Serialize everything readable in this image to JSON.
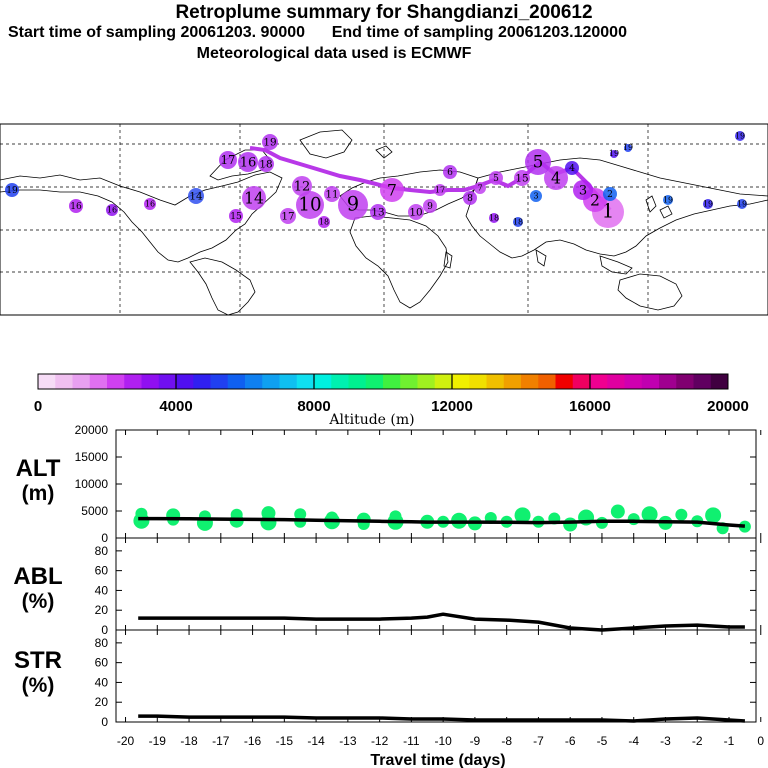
{
  "titles": {
    "line1": "Retroplume summary for Shangdianzi_200612",
    "line2": "Start time of sampling 20061203. 90000      End time of sampling 20061203.120000",
    "line3": "Meteorological data used is ECMWF"
  },
  "colorbar": {
    "label": "Altitude (m)",
    "ticks": [
      "0",
      "4000",
      "8000",
      "12000",
      "16000",
      "20000"
    ],
    "range": [
      0,
      20000
    ],
    "colors": [
      "#f6dcf6",
      "#f0c0f0",
      "#e8a0f0",
      "#e070f0",
      "#d040f0",
      "#b020f0",
      "#9010f0",
      "#7010f0",
      "#5010f0",
      "#3020f0",
      "#2040f0",
      "#1060f0",
      "#1080f0",
      "#10a0f0",
      "#10c0f0",
      "#10e0f0",
      "#00f0e0",
      "#00f0b0",
      "#00f090",
      "#10f070",
      "#40f040",
      "#70f030",
      "#a0f020",
      "#d0f010",
      "#f0f000",
      "#f0e000",
      "#f0c000",
      "#f0a000",
      "#f08000",
      "#f06000",
      "#f00000",
      "#f00060",
      "#f00090",
      "#e000a0",
      "#d000b0",
      "#c000b0",
      "#a00090",
      "#800070",
      "#600060",
      "#400040"
    ]
  },
  "map": {
    "plume_color": "#bb30e0",
    "labels": [
      "1",
      "2",
      "3",
      "4",
      "5",
      "6",
      "7",
      "8",
      "9",
      "10",
      "11",
      "12",
      "13",
      "14",
      "15",
      "16",
      "17",
      "18",
      "19"
    ]
  },
  "panels": {
    "alt": {
      "label_top": "ALT",
      "label_bottom": "(m)",
      "ticks": [
        "0",
        "5000",
        "10000",
        "15000",
        "20000"
      ]
    },
    "abl": {
      "label_top": "ABL",
      "label_bottom": "(%)",
      "ticks": [
        "0",
        "20",
        "40",
        "60",
        "80"
      ]
    },
    "str": {
      "label_top": "STR",
      "label_bottom": "(%)",
      "ticks": [
        "0",
        "20",
        "40",
        "60",
        "80"
      ]
    }
  },
  "xaxis": {
    "label": "Travel time (days)",
    "ticks": [
      "-20",
      "-19",
      "-18",
      "-17",
      "-16",
      "-15",
      "-14",
      "-13",
      "-12",
      "-11",
      "-10",
      "-9",
      "-8",
      "-7",
      "-6",
      "-5",
      "-4",
      "-3",
      "-2",
      "-1",
      "0"
    ]
  },
  "chart_data": {
    "type": "line",
    "title": "Retroplume summary for Shangdianzi_200612",
    "xlabel": "Travel time (days)",
    "xlim": [
      -20,
      0
    ],
    "x": [
      -19.6,
      -19,
      -18,
      -17,
      -16,
      -15,
      -14,
      -13,
      -12,
      -11,
      -10.5,
      -10,
      -9,
      -8,
      -7,
      -6,
      -5,
      -4,
      -3,
      -2,
      -1,
      -0.5
    ],
    "series": [
      {
        "name": "ALT (m)",
        "ylim": [
          0,
          20000
        ],
        "values": [
          3600,
          3600,
          3550,
          3500,
          3450,
          3400,
          3300,
          3200,
          3100,
          3000,
          2950,
          2950,
          2950,
          2900,
          2850,
          2950,
          3100,
          3100,
          3000,
          2950,
          2400,
          2200
        ],
        "cluster_points": [
          [
            -19.5,
            3200
          ],
          [
            -19.5,
            4500
          ],
          [
            -18.5,
            3400
          ],
          [
            -18.5,
            4200
          ],
          [
            -17.5,
            2800
          ],
          [
            -17.5,
            4000
          ],
          [
            -16.5,
            3200
          ],
          [
            -16.5,
            4300
          ],
          [
            -15.5,
            2900
          ],
          [
            -15.5,
            4600
          ],
          [
            -14.5,
            3000
          ],
          [
            -14.5,
            4400
          ],
          [
            -13.5,
            3100
          ],
          [
            -13.5,
            3800
          ],
          [
            -12.5,
            2600
          ],
          [
            -12.5,
            3400
          ],
          [
            -11.5,
            3000
          ],
          [
            -11.5,
            4000
          ],
          [
            -10.5,
            3000
          ],
          [
            -10,
            3000
          ],
          [
            -9.5,
            3200
          ],
          [
            -9,
            2700
          ],
          [
            -8.5,
            3700
          ],
          [
            -8,
            3000
          ],
          [
            -7.5,
            4200
          ],
          [
            -7,
            3000
          ],
          [
            -6.5,
            3600
          ],
          [
            -6,
            2500
          ],
          [
            -5.5,
            3800
          ],
          [
            -5,
            2800
          ],
          [
            -4.5,
            4900
          ],
          [
            -4,
            3500
          ],
          [
            -3.5,
            4400
          ],
          [
            -3,
            2800
          ],
          [
            -2.5,
            4300
          ],
          [
            -2,
            3100
          ],
          [
            -1.5,
            4200
          ],
          [
            -1.2,
            1800
          ],
          [
            -0.5,
            2100
          ]
        ]
      },
      {
        "name": "ABL (%)",
        "ylim": [
          0,
          90
        ],
        "values": [
          12,
          12,
          12,
          12,
          12,
          12,
          11,
          11,
          11,
          12,
          13,
          16,
          11,
          10,
          8,
          2,
          0,
          2,
          4,
          5,
          3,
          3
        ]
      },
      {
        "name": "STR (%)",
        "ylim": [
          0,
          90
        ],
        "values": [
          6,
          6,
          5,
          5,
          5,
          5,
          4,
          4,
          4,
          3,
          3,
          3,
          2,
          2,
          2,
          2,
          2,
          1,
          3,
          4,
          2,
          1
        ]
      }
    ]
  }
}
